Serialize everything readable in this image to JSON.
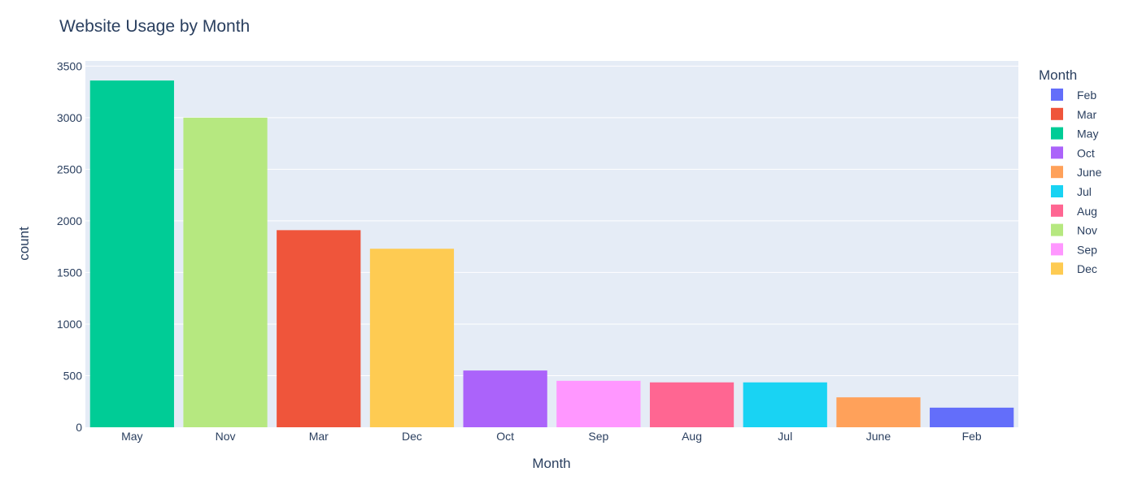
{
  "chart_data": {
    "type": "bar",
    "title": "Website Usage by Month",
    "xlabel": "Month",
    "ylabel": "count",
    "categories": [
      "May",
      "Nov",
      "Mar",
      "Dec",
      "Oct",
      "Sep",
      "Aug",
      "Jul",
      "June",
      "Feb"
    ],
    "values": [
      3360,
      3000,
      1910,
      1730,
      550,
      450,
      435,
      435,
      290,
      190
    ],
    "ylim": [
      0,
      3550
    ],
    "yticks": [
      0,
      500,
      1000,
      1500,
      2000,
      2500,
      3000,
      3500
    ],
    "grid": true,
    "legend": {
      "title": "Month",
      "placement": "right",
      "items": [
        {
          "name": "Feb",
          "color": "#636EFA"
        },
        {
          "name": "Mar",
          "color": "#EF553B"
        },
        {
          "name": "May",
          "color": "#00CC96"
        },
        {
          "name": "Oct",
          "color": "#AB63FA"
        },
        {
          "name": "June",
          "color": "#FFA15A"
        },
        {
          "name": "Jul",
          "color": "#19D3F3"
        },
        {
          "name": "Aug",
          "color": "#FF6692"
        },
        {
          "name": "Nov",
          "color": "#B6E880"
        },
        {
          "name": "Sep",
          "color": "#FF97FF"
        },
        {
          "name": "Dec",
          "color": "#FECB52"
        }
      ]
    },
    "plot_background": "#E5ECF6",
    "text_color": "#2A3F5F"
  }
}
